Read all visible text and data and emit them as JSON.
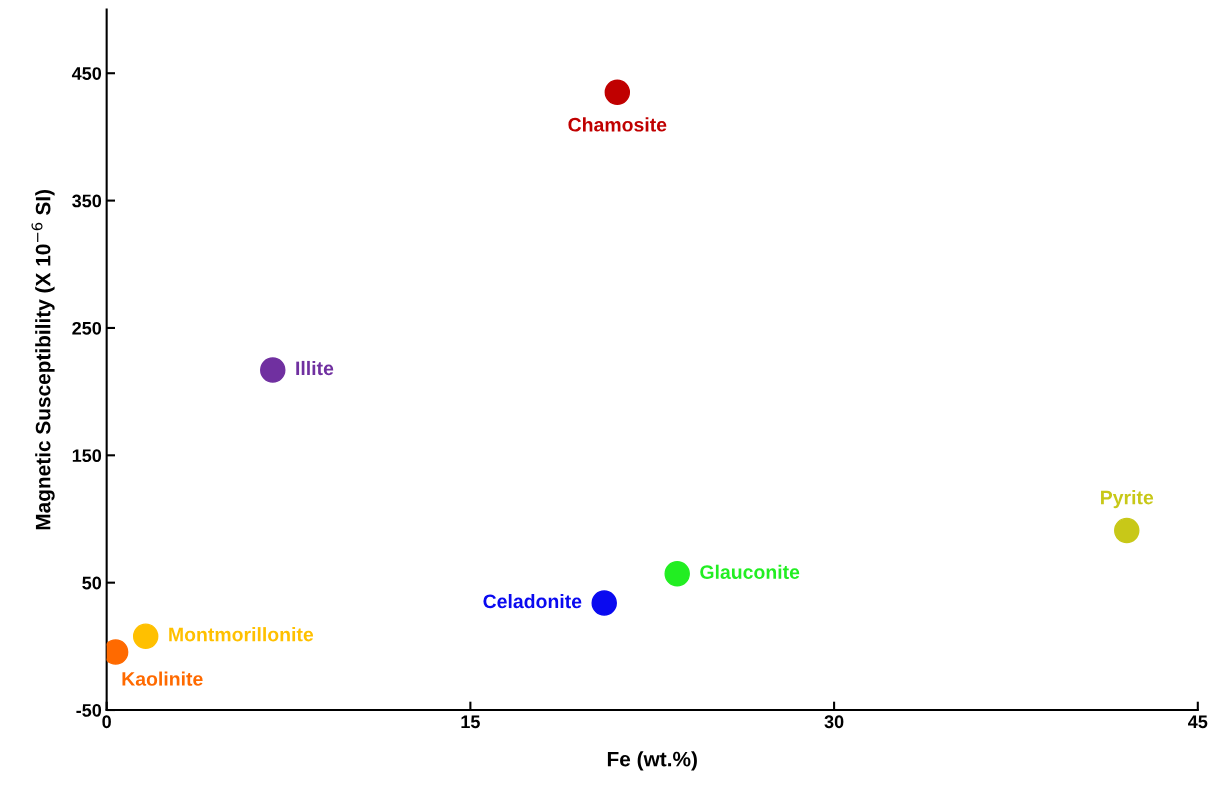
{
  "chart_data": {
    "type": "scatter",
    "xlabel": "Fe (wt.%)",
    "ylabel": "Magnetic Susceptibility (X 10$^{−6}$ SI)",
    "xlim": [
      0,
      45
    ],
    "xticks": [
      0,
      15,
      30,
      45
    ],
    "ylim": [
      -50,
      500
    ],
    "yticks": [
      -50,
      50,
      150,
      250,
      350,
      450
    ],
    "grid": false,
    "legend": false,
    "marker": "circle",
    "series": [
      {
        "name": "Chamosite",
        "color": "#c00000",
        "x": [
          21.06
        ],
        "values": [
          435
        ]
      },
      {
        "name": "Illite",
        "color": "#7030a0",
        "x": [
          6.85
        ],
        "values": [
          217
        ]
      },
      {
        "name": "Pyrite",
        "color": "#c8c818",
        "x": [
          42.07
        ],
        "values": [
          91
        ]
      },
      {
        "name": "Glauconite",
        "color": "#22ee22",
        "x": [
          23.53
        ],
        "values": [
          57
        ]
      },
      {
        "name": "Celadonite",
        "color": "#0a0af0",
        "x": [
          20.52
        ],
        "values": [
          34
        ]
      },
      {
        "name": "Montmorillonite",
        "color": "#ffc000",
        "x": [
          1.61
        ],
        "values": [
          8
        ]
      },
      {
        "name": "Kaolinite",
        "color": "#ff6a00",
        "x": [
          0.37
        ],
        "values": [
          -4.5
        ]
      }
    ]
  }
}
